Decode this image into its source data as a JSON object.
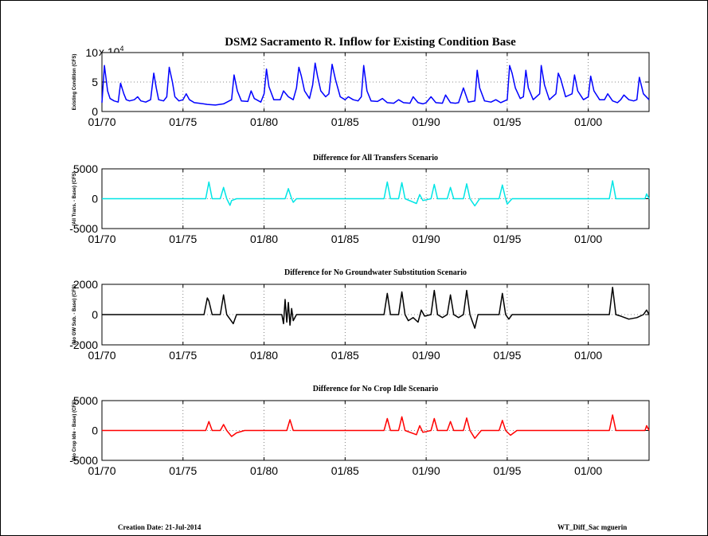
{
  "page": {
    "title": "DSM2 Sacramento R. Inflow for Existing Condition Base",
    "footer_left": "Creation Date:   21-Jul-2014",
    "footer_right": "WT_Diff_Sac mguerin"
  },
  "colors": {
    "base": "#0000ff",
    "all_transfers": "#00e5e5",
    "no_gw_sub": "#000000",
    "no_crop_idle": "#ff0000"
  },
  "x_ticks": [
    "01/70",
    "01/75",
    "01/80",
    "01/85",
    "01/90",
    "01/95",
    "01/00"
  ],
  "chart_data": [
    {
      "type": "line",
      "title": "",
      "ylabel": "Existing Condition (CFS)",
      "exponent_label": "x 10",
      "exponent_sup": "4",
      "x_range": [
        1970.0,
        2003.75
      ],
      "ylim": [
        0,
        10
      ],
      "y_ticks": [
        "0",
        "5",
        "10"
      ],
      "y_tick_values": [
        0,
        5,
        10
      ],
      "color": "#0000ff",
      "series": [
        {
          "x": [
            1970.0,
            1970.15,
            1970.35,
            1970.5,
            1970.75,
            1971.0,
            1971.15,
            1971.35,
            1971.5,
            1971.7,
            1972.0,
            1972.2,
            1972.4,
            1972.7,
            1973.0,
            1973.2,
            1973.35,
            1973.5,
            1973.8,
            1974.0,
            1974.15,
            1974.35,
            1974.5,
            1974.75,
            1975.0,
            1975.2,
            1975.4,
            1975.7,
            1976.0,
            1976.5,
            1977.0,
            1977.5,
            1978.0,
            1978.15,
            1978.35,
            1978.6,
            1979.0,
            1979.2,
            1979.4,
            1979.8,
            1980.0,
            1980.15,
            1980.3,
            1980.6,
            1981.0,
            1981.2,
            1981.5,
            1981.8,
            1982.0,
            1982.15,
            1982.3,
            1982.5,
            1982.8,
            1983.0,
            1983.15,
            1983.3,
            1983.5,
            1983.8,
            1984.0,
            1984.2,
            1984.4,
            1984.7,
            1985.0,
            1985.2,
            1985.5,
            1985.8,
            1986.0,
            1986.15,
            1986.35,
            1986.6,
            1987.0,
            1987.3,
            1987.6,
            1988.0,
            1988.3,
            1988.6,
            1989.0,
            1989.2,
            1989.5,
            1989.8,
            1990.0,
            1990.3,
            1990.6,
            1991.0,
            1991.2,
            1991.5,
            1991.8,
            1992.0,
            1992.3,
            1992.6,
            1993.0,
            1993.15,
            1993.3,
            1993.6,
            1994.0,
            1994.3,
            1994.6,
            1995.0,
            1995.15,
            1995.3,
            1995.5,
            1995.8,
            1996.0,
            1996.15,
            1996.3,
            1996.6,
            1997.0,
            1997.1,
            1997.3,
            1997.6,
            1998.0,
            1998.15,
            1998.3,
            1998.6,
            1999.0,
            1999.15,
            1999.35,
            1999.7,
            2000.0,
            2000.15,
            2000.35,
            2000.7,
            2001.0,
            2001.2,
            2001.5,
            2001.8,
            2002.0,
            2002.2,
            2002.5,
            2002.8,
            2003.0,
            2003.15,
            2003.4,
            2003.75
          ],
          "values": [
            1.5,
            7.8,
            3.5,
            2.2,
            1.8,
            1.6,
            4.8,
            3.0,
            2.0,
            1.8,
            2.0,
            2.5,
            1.8,
            1.6,
            2.0,
            6.5,
            4.0,
            2.0,
            1.8,
            2.5,
            7.5,
            5.0,
            2.5,
            1.8,
            2.0,
            3.0,
            2.0,
            1.5,
            1.4,
            1.2,
            1.1,
            1.3,
            2.0,
            6.2,
            3.5,
            1.8,
            1.7,
            3.5,
            2.2,
            1.6,
            3.0,
            7.2,
            4.2,
            2.0,
            2.0,
            3.5,
            2.5,
            2.0,
            4.0,
            7.5,
            6.0,
            3.5,
            2.2,
            4.5,
            8.2,
            6.0,
            3.5,
            2.5,
            3.0,
            8.0,
            5.5,
            2.5,
            2.0,
            2.5,
            2.0,
            1.8,
            2.5,
            7.8,
            3.5,
            1.8,
            1.7,
            2.2,
            1.5,
            1.4,
            2.0,
            1.5,
            1.4,
            2.5,
            1.5,
            1.3,
            1.5,
            2.5,
            1.5,
            1.4,
            2.8,
            1.5,
            1.4,
            1.5,
            4.0,
            1.6,
            1.8,
            7.0,
            4.0,
            1.8,
            1.6,
            2.0,
            1.5,
            2.0,
            7.8,
            6.5,
            4.0,
            2.2,
            2.5,
            7.0,
            4.0,
            2.0,
            3.0,
            7.8,
            4.5,
            2.0,
            3.0,
            6.5,
            5.5,
            2.5,
            3.0,
            6.2,
            3.5,
            2.0,
            2.5,
            6.0,
            3.5,
            2.0,
            2.0,
            3.0,
            1.8,
            1.5,
            2.0,
            2.8,
            2.0,
            1.8,
            2.0,
            5.8,
            3.0,
            2.0
          ]
        }
      ]
    },
    {
      "type": "line",
      "title": "Difference for All Transfers Scenario",
      "ylabel": "(All Trans. - Base) (CFS)",
      "x_range": [
        1970.0,
        2003.75
      ],
      "ylim": [
        -5000,
        5000
      ],
      "y_ticks": [
        "5000",
        "0",
        "-5000"
      ],
      "y_tick_values": [
        5000,
        0,
        -5000
      ],
      "color": "#00e5e5",
      "series": [
        {
          "x": [
            1970.0,
            1976.4,
            1976.6,
            1976.8,
            1977.3,
            1977.5,
            1977.7,
            1977.9,
            1978.0,
            1978.3,
            1981.3,
            1981.5,
            1981.7,
            1981.8,
            1982.0,
            1987.4,
            1987.6,
            1987.8,
            1988.3,
            1988.5,
            1988.7,
            1989.4,
            1989.6,
            1989.8,
            1990.3,
            1990.5,
            1990.7,
            1991.3,
            1991.5,
            1991.7,
            1992.3,
            1992.5,
            1992.7,
            1993.0,
            1993.3,
            1994.5,
            1994.7,
            1994.9,
            1995.0,
            1995.3,
            2001.3,
            2001.5,
            2001.7,
            2002.0,
            2003.5,
            2003.6,
            2003.75
          ],
          "values": [
            0,
            0,
            2800,
            0,
            0,
            1900,
            0,
            -1100,
            -300,
            0,
            0,
            1700,
            0,
            -600,
            0,
            0,
            2800,
            0,
            0,
            2700,
            0,
            -800,
            700,
            -300,
            0,
            2400,
            0,
            0,
            1900,
            0,
            0,
            2500,
            0,
            -1200,
            0,
            0,
            2300,
            0,
            -900,
            0,
            0,
            3000,
            0,
            0,
            0,
            800,
            0
          ]
        }
      ]
    },
    {
      "type": "line",
      "title": "Difference for No Groundwater Substitution Scenario",
      "ylabel": "(No GW Sub. - Base) (CFS)",
      "x_range": [
        1970.0,
        2003.75
      ],
      "ylim": [
        -2000,
        2000
      ],
      "y_ticks": [
        "2000",
        "0",
        "-2000"
      ],
      "y_tick_values": [
        2000,
        0,
        -2000
      ],
      "color": "#000000",
      "series": [
        {
          "x": [
            1970.0,
            1976.3,
            1976.5,
            1976.6,
            1976.8,
            1977.3,
            1977.5,
            1977.7,
            1977.9,
            1978.1,
            1978.3,
            1981.1,
            1981.2,
            1981.3,
            1981.4,
            1981.5,
            1981.6,
            1981.7,
            1981.8,
            1982.0,
            1987.4,
            1987.6,
            1987.8,
            1988.3,
            1988.5,
            1988.7,
            1988.9,
            1989.2,
            1989.5,
            1989.7,
            1989.9,
            1990.3,
            1990.5,
            1990.7,
            1991.0,
            1991.3,
            1991.5,
            1991.7,
            1992.0,
            1992.3,
            1992.5,
            1992.7,
            1993.0,
            1993.2,
            1993.5,
            1994.5,
            1994.7,
            1994.9,
            1995.1,
            1995.3,
            1995.5,
            2001.3,
            2001.5,
            2001.7,
            2002.0,
            2002.5,
            2003.0,
            2003.4,
            2003.6,
            2003.75
          ],
          "values": [
            0,
            0,
            1100,
            900,
            0,
            0,
            1300,
            0,
            -300,
            -600,
            0,
            0,
            -600,
            1000,
            -500,
            800,
            -700,
            400,
            -400,
            0,
            0,
            1400,
            0,
            0,
            1500,
            0,
            -400,
            -200,
            -500,
            300,
            -100,
            0,
            1600,
            0,
            -200,
            0,
            1300,
            0,
            -200,
            0,
            1600,
            0,
            -900,
            0,
            0,
            0,
            1400,
            0,
            -300,
            0,
            0,
            0,
            1800,
            0,
            -100,
            -300,
            -200,
            0,
            300,
            0
          ]
        }
      ]
    },
    {
      "type": "line",
      "title": "Difference for No Crop Idle Scenario",
      "ylabel": "(No Crop Idle - Base) (CFS)",
      "x_range": [
        1970.0,
        2003.75
      ],
      "ylim": [
        -5000,
        5000
      ],
      "y_ticks": [
        "5000",
        "0",
        "-5000"
      ],
      "y_tick_values": [
        5000,
        0,
        -5000
      ],
      "color": "#ff0000",
      "series": [
        {
          "x": [
            1970.0,
            1976.4,
            1976.6,
            1976.8,
            1977.3,
            1977.5,
            1977.7,
            1978.0,
            1978.3,
            1978.8,
            1981.4,
            1981.6,
            1981.8,
            1982.0,
            1987.4,
            1987.6,
            1987.8,
            1988.3,
            1988.5,
            1988.7,
            1989.4,
            1989.6,
            1989.8,
            1990.3,
            1990.5,
            1990.7,
            1991.3,
            1991.5,
            1991.7,
            1992.3,
            1992.5,
            1992.7,
            1993.0,
            1993.4,
            1994.5,
            1994.7,
            1994.9,
            1995.2,
            1995.6,
            2001.3,
            2001.5,
            2001.7,
            2002.0,
            2003.5,
            2003.6,
            2003.75
          ],
          "values": [
            0,
            0,
            1500,
            0,
            0,
            1000,
            0,
            -1000,
            -400,
            0,
            0,
            1800,
            0,
            0,
            0,
            2000,
            0,
            0,
            2300,
            0,
            -700,
            800,
            -300,
            0,
            2000,
            0,
            0,
            1500,
            0,
            0,
            2100,
            0,
            -1300,
            0,
            0,
            1700,
            0,
            -800,
            0,
            0,
            2600,
            0,
            0,
            0,
            800,
            0
          ]
        }
      ]
    }
  ]
}
